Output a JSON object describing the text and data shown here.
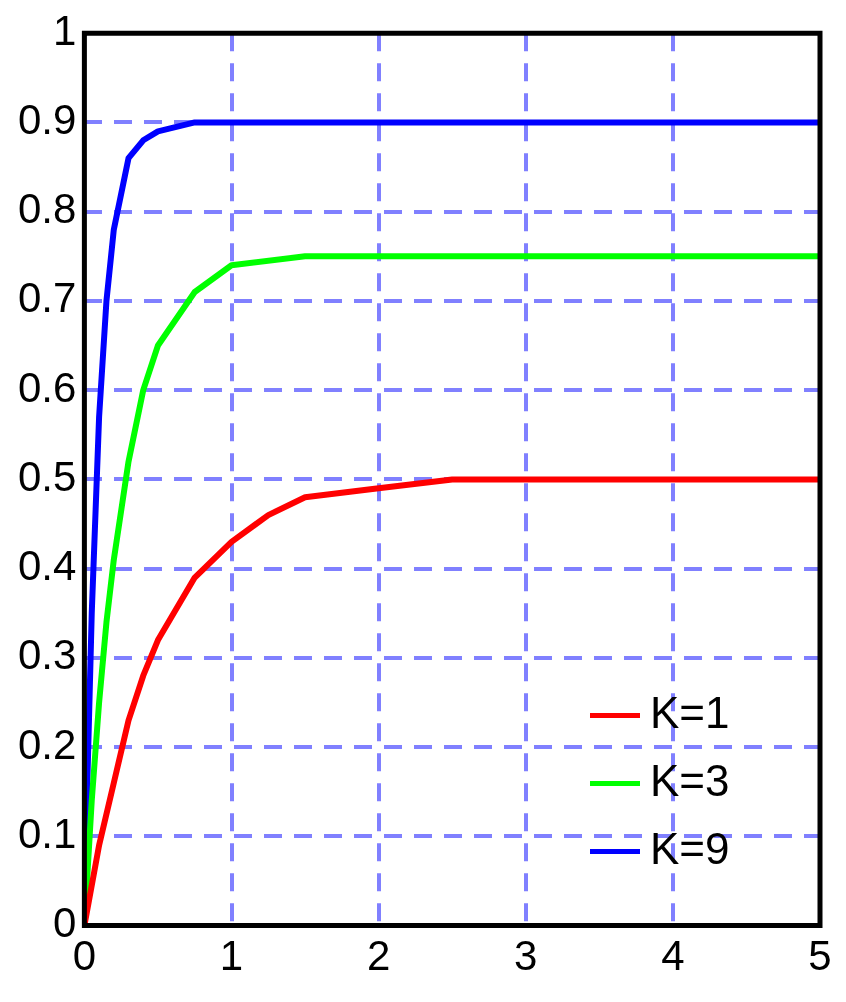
{
  "chart_data": {
    "type": "line",
    "xlim": [
      0,
      5
    ],
    "ylim": [
      0,
      1
    ],
    "xticks": [
      0,
      1,
      2,
      3,
      4,
      5
    ],
    "yticks": [
      0,
      0.1,
      0.2,
      0.3,
      0.4,
      0.5,
      0.6,
      0.7,
      0.8,
      0.9,
      1
    ],
    "grid": true,
    "legend": "bottom right",
    "marker": "none",
    "line_style": "solid",
    "series": [
      {
        "name": "K=1",
        "color": "#ff0000",
        "x": [
          0,
          0.1,
          0.2,
          0.3,
          0.4,
          0.5,
          0.75,
          1,
          1.25,
          1.5,
          2,
          2.5,
          3,
          4,
          5
        ],
        "values": [
          0,
          0.09,
          0.16,
          0.23,
          0.28,
          0.32,
          0.39,
          0.43,
          0.46,
          0.48,
          0.49,
          0.5,
          0.5,
          0.5,
          0.5
        ]
      },
      {
        "name": "K=3",
        "color": "#00ff00",
        "x": [
          0,
          0.05,
          0.1,
          0.15,
          0.2,
          0.3,
          0.4,
          0.5,
          0.75,
          1,
          1.5,
          2,
          3,
          5
        ],
        "values": [
          0,
          0.14,
          0.25,
          0.34,
          0.41,
          0.52,
          0.6,
          0.65,
          0.71,
          0.74,
          0.75,
          0.75,
          0.75,
          0.75
        ]
      },
      {
        "name": "K=9",
        "color": "#0000ff",
        "x": [
          0,
          0.02,
          0.05,
          0.1,
          0.15,
          0.2,
          0.3,
          0.4,
          0.5,
          0.75,
          1,
          2,
          5
        ],
        "values": [
          0,
          0.16,
          0.35,
          0.57,
          0.7,
          0.78,
          0.86,
          0.88,
          0.89,
          0.9,
          0.9,
          0.9,
          0.9
        ]
      }
    ]
  }
}
